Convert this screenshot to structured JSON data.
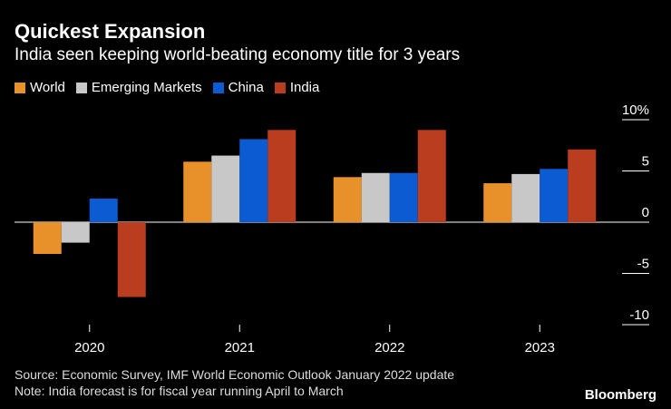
{
  "chart_data": {
    "type": "bar",
    "title": "Quickest Expansion",
    "subtitle": "India seen keeping world-beating economy title for 3 years",
    "categories": [
      "2020",
      "2021",
      "2022",
      "2023"
    ],
    "series": [
      {
        "name": "World",
        "color": "#e8912b",
        "values": [
          -3.1,
          5.9,
          4.4,
          3.8
        ]
      },
      {
        "name": "Emerging Markets",
        "color": "#c8c8c8",
        "values": [
          -2.0,
          6.5,
          4.8,
          4.7
        ]
      },
      {
        "name": "China",
        "color": "#0b5bd3",
        "values": [
          2.3,
          8.1,
          4.8,
          5.2
        ]
      },
      {
        "name": "India",
        "color": "#b93d1e",
        "values": [
          -7.3,
          9.0,
          9.0,
          7.1
        ]
      }
    ],
    "ylim": [
      -10,
      10
    ],
    "yticks": [
      -10,
      -5,
      0,
      5,
      10
    ],
    "ytick_labels": [
      "-10",
      "-5",
      "0",
      "5",
      "10%"
    ],
    "xlabel": "",
    "ylabel": ""
  },
  "footer": {
    "source": "Source: Economic Survey, IMF World Economic Outlook January 2022 update",
    "note": "Note: India forecast is for fiscal year running April to March"
  },
  "brand": "Bloomberg"
}
